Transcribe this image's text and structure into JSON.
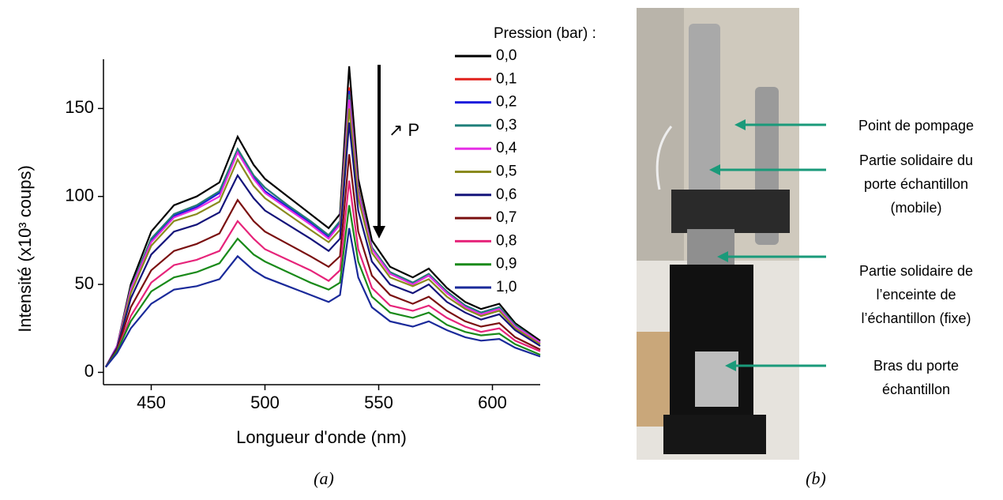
{
  "chart_data": {
    "type": "line",
    "x_label": "Longueur d'onde (nm)",
    "y_label": "Intensité (x10³ coups)",
    "legend_title": "Pression (bar) :",
    "annotation": "↗ P",
    "x": [
      430,
      435,
      441,
      450,
      460,
      470,
      480,
      488,
      495,
      500,
      510,
      520,
      528,
      533,
      537,
      541,
      547,
      555,
      565,
      572,
      580,
      588,
      595,
      603,
      610,
      621
    ],
    "xlim": [
      429,
      621
    ],
    "xticks": [
      450,
      500,
      550,
      600
    ],
    "ylim": [
      -7,
      178
    ],
    "yticks": [
      0,
      50,
      100,
      150
    ],
    "series": [
      {
        "name": "0,0",
        "color": "#000000",
        "values": [
          3,
          15,
          50,
          80,
          95,
          100,
          108,
          134,
          118,
          110,
          100,
          90,
          82,
          90,
          174,
          110,
          75,
          60,
          54,
          59,
          48,
          40,
          36,
          39,
          28,
          18
        ]
      },
      {
        "name": "0,1",
        "color": "#e0201b",
        "values": [
          3,
          15,
          48,
          76,
          90,
          95,
          103,
          127,
          112,
          105,
          95,
          86,
          78,
          86,
          162,
          105,
          71,
          57,
          51,
          56,
          46,
          38,
          34,
          37,
          27,
          17
        ]
      },
      {
        "name": "0,2",
        "color": "#1c1cdc",
        "values": [
          3,
          15,
          47,
          75,
          89,
          94,
          102,
          126,
          111,
          103,
          94,
          85,
          77,
          85,
          160,
          103,
          71,
          56,
          51,
          55,
          45,
          38,
          34,
          37,
          26,
          17
        ]
      },
      {
        "name": "0,3",
        "color": "#1f7f7a",
        "values": [
          3,
          15,
          48,
          76,
          90,
          95,
          103,
          127,
          112,
          105,
          95,
          86,
          78,
          86,
          158,
          104,
          71,
          57,
          51,
          56,
          46,
          38,
          34,
          37,
          27,
          17
        ]
      },
      {
        "name": "0,4",
        "color": "#e62ee6",
        "values": [
          3,
          15,
          47,
          74,
          88,
          93,
          100,
          125,
          110,
          102,
          93,
          84,
          76,
          84,
          155,
          102,
          70,
          56,
          50,
          55,
          45,
          37,
          33,
          36,
          26,
          17
        ]
      },
      {
        "name": "0,5",
        "color": "#8a8a1e",
        "values": [
          3,
          14,
          45,
          72,
          86,
          90,
          97,
          121,
          106,
          99,
          90,
          81,
          74,
          81,
          150,
          99,
          68,
          54,
          49,
          53,
          43,
          36,
          32,
          35,
          25,
          16
        ]
      },
      {
        "name": "0,6",
        "color": "#14147a",
        "values": [
          3,
          14,
          42,
          67,
          80,
          84,
          91,
          112,
          99,
          92,
          84,
          76,
          69,
          76,
          142,
          92,
          63,
          50,
          45,
          50,
          40,
          34,
          30,
          33,
          24,
          15
        ]
      },
      {
        "name": "0,7",
        "color": "#7a1010",
        "values": [
          3,
          13,
          37,
          58,
          69,
          73,
          79,
          98,
          86,
          80,
          73,
          66,
          60,
          66,
          124,
          80,
          55,
          44,
          39,
          43,
          35,
          29,
          26,
          28,
          20,
          13
        ]
      },
      {
        "name": "0,8",
        "color": "#e6247a",
        "values": [
          3,
          12,
          32,
          51,
          61,
          64,
          69,
          86,
          76,
          70,
          64,
          58,
          52,
          58,
          109,
          70,
          48,
          38,
          35,
          38,
          31,
          26,
          23,
          25,
          18,
          12
        ]
      },
      {
        "name": "0,9",
        "color": "#1a8a1a",
        "values": [
          3,
          12,
          29,
          46,
          54,
          57,
          62,
          76,
          67,
          63,
          57,
          51,
          47,
          51,
          95,
          63,
          43,
          34,
          31,
          34,
          27,
          23,
          21,
          22,
          16,
          10
        ]
      },
      {
        "name": "1,0",
        "color": "#1a2a9a",
        "values": [
          3,
          11,
          25,
          39,
          47,
          49,
          53,
          66,
          58,
          54,
          49,
          44,
          40,
          44,
          82,
          54,
          37,
          29,
          26,
          29,
          24,
          20,
          18,
          19,
          14,
          9
        ]
      }
    ]
  },
  "photo": {
    "labels": [
      [
        "Point de pompage"
      ],
      [
        "Partie solidaire du",
        "porte échantillon",
        "(mobile)"
      ],
      [
        "Partie solidaire de",
        "l’enceinte de",
        "l’échantillon (fixe)"
      ],
      [
        "Bras du porte",
        "échantillon"
      ]
    ]
  },
  "panel_labels": [
    "(a)",
    "(b)"
  ]
}
